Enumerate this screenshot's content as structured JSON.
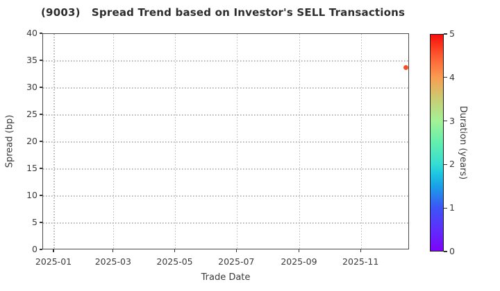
{
  "chart_data": {
    "type": "scatter",
    "title": "(9003)   Spread Trend based on Investor's SELL Transactions",
    "xlabel": "Trade Date",
    "ylabel": "Spread (bp)",
    "ylim": [
      0,
      40
    ],
    "yticks": [
      0,
      5,
      10,
      15,
      20,
      25,
      30,
      35,
      40
    ],
    "xlim": [
      "2024-12-21",
      "2025-12-19"
    ],
    "xticks": [
      {
        "date": "2025-01-01",
        "label": "2025-01"
      },
      {
        "date": "2025-03-01",
        "label": "2025-03"
      },
      {
        "date": "2025-05-01",
        "label": "2025-05"
      },
      {
        "date": "2025-07-01",
        "label": "2025-07"
      },
      {
        "date": "2025-09-01",
        "label": "2025-09"
      },
      {
        "date": "2025-11-01",
        "label": "2025-11"
      }
    ],
    "grid": true,
    "legend_position": "none",
    "points": [
      {
        "date": "2025-12-16",
        "spread_bp": 33.6,
        "duration_years": 4.3,
        "color": "#f4512b"
      }
    ],
    "colorbar": {
      "label": "Duration (years)",
      "min": 0,
      "max": 5,
      "ticks": [
        0,
        1,
        2,
        3,
        4,
        5
      ],
      "colormap": "rainbow",
      "gradient": [
        [
          0.0,
          "#7d04fa"
        ],
        [
          0.1,
          "#5d2efb"
        ],
        [
          0.2,
          "#3c55f6"
        ],
        [
          0.3,
          "#19a1e6"
        ],
        [
          0.36,
          "#1fc8e0"
        ],
        [
          0.4,
          "#35ddd2"
        ],
        [
          0.5,
          "#62efae"
        ],
        [
          0.6,
          "#a3f296"
        ],
        [
          0.7,
          "#c7ce74"
        ],
        [
          0.8,
          "#f99d52"
        ],
        [
          0.9,
          "#fc5c31"
        ],
        [
          1.0,
          "#f90f0b"
        ]
      ]
    }
  },
  "colors": {
    "background": "#ffffff",
    "frame": "#4a4a4a",
    "grid": "#b5b5b5",
    "text": "#3a3a3a",
    "title": "#2d2d2d"
  }
}
